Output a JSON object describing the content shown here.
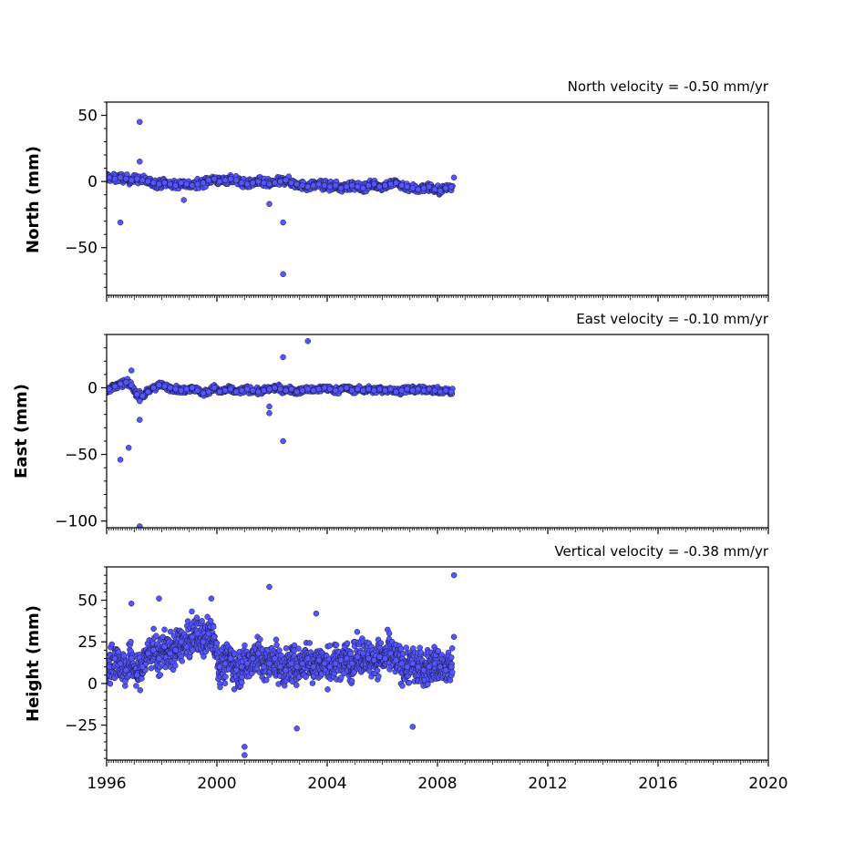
{
  "figure": {
    "x_ticks": [
      1996,
      2000,
      2004,
      2008,
      2012,
      2016,
      2020
    ],
    "x_range": [
      1996,
      2020
    ]
  },
  "panels": [
    {
      "key": "north",
      "velocity_label": "North velocity = -0.50 mm/yr",
      "ylabel": "North (mm)",
      "ylim": [
        -86,
        60
      ],
      "yticks": [
        50,
        0,
        -50
      ],
      "ytick_labels": [
        "50",
        "0",
        "−50"
      ]
    },
    {
      "key": "east",
      "velocity_label": "East velocity = -0.10 mm/yr",
      "ylabel": "East (mm)",
      "ylim": [
        -105,
        40
      ],
      "yticks": [
        0,
        -50,
        -100
      ],
      "ytick_labels": [
        "0",
        "−50",
        "−100"
      ]
    },
    {
      "key": "height",
      "velocity_label": "Vertical velocity = -0.38 mm/yr",
      "ylabel": "Height (mm)",
      "ylim": [
        -46,
        70
      ],
      "yticks": [
        50,
        25,
        0,
        -25
      ],
      "ytick_labels": [
        "50",
        "25",
        "0",
        "−25"
      ]
    }
  ],
  "chart_data": [
    {
      "type": "scatter",
      "title": "North velocity = -0.50 mm/yr",
      "xlabel": "",
      "ylabel": "North (mm)",
      "xlim": [
        1996,
        2020
      ],
      "ylim": [
        -86,
        60
      ],
      "marker_color": "#5555ff",
      "marker_edge": "#1a1a40",
      "series": [
        {
          "description": "daily position time series, approx. 1996.0 to 2008.6; values read from chart",
          "x": [
            1996.0,
            1996.1,
            1996.3,
            1996.5,
            1996.7,
            1996.9,
            1997.1,
            1997.3,
            1997.5,
            1997.7,
            1997.9,
            1998.1,
            1998.3,
            1998.5,
            1998.7,
            1998.9,
            1999.1,
            1999.3,
            1999.5,
            1999.7,
            1999.9,
            2000.1,
            2000.3,
            2000.5,
            2000.7,
            2000.9,
            2001.1,
            2001.3,
            2001.5,
            2001.7,
            2001.9,
            2002.1,
            2002.3,
            2002.5,
            2002.7,
            2002.9,
            2003.1,
            2003.3,
            2003.5,
            2003.7,
            2003.9,
            2004.1,
            2004.3,
            2004.5,
            2004.7,
            2004.9,
            2005.1,
            2005.3,
            2005.5,
            2005.7,
            2005.9,
            2006.1,
            2006.3,
            2006.5,
            2006.7,
            2006.9,
            2007.1,
            2007.3,
            2007.5,
            2007.7,
            2007.9,
            2008.1,
            2008.3,
            2008.5,
            1996.5,
            1997.2,
            1997.2,
            2001.9,
            2002.4,
            2002.4,
            1998.8,
            2008.6
          ],
          "y": [
            4,
            3,
            2,
            3,
            2,
            1,
            2,
            1,
            0,
            -1,
            -2,
            -1,
            -2,
            -3,
            -1,
            -2,
            -3,
            -2,
            -1,
            1,
            2,
            0,
            1,
            2,
            1,
            -1,
            -2,
            -1,
            0,
            -1,
            -2,
            -1,
            0,
            1,
            -1,
            -2,
            -3,
            -4,
            -3,
            -2,
            -3,
            -4,
            -3,
            -5,
            -4,
            -3,
            -4,
            -5,
            -3,
            -2,
            -4,
            -3,
            -2,
            -1,
            -3,
            -4,
            -5,
            -6,
            -5,
            -4,
            -6,
            -7,
            -5,
            -4,
            -31,
            45,
            15,
            -17,
            -31,
            -70,
            -14,
            3
          ]
        }
      ]
    },
    {
      "type": "scatter",
      "title": "East velocity = -0.10 mm/yr",
      "xlabel": "",
      "ylabel": "East (mm)",
      "xlim": [
        1996,
        2020
      ],
      "ylim": [
        -105,
        40
      ],
      "marker_color": "#5555ff",
      "marker_edge": "#1a1a40",
      "series": [
        {
          "description": "daily position time series, approx. 1996.0 to 2008.6; values read from chart",
          "x": [
            1996.0,
            1996.1,
            1996.3,
            1996.5,
            1996.7,
            1996.9,
            1997.1,
            1997.3,
            1997.5,
            1997.7,
            1997.9,
            1998.1,
            1998.3,
            1998.5,
            1998.7,
            1998.9,
            1999.1,
            1999.3,
            1999.5,
            1999.7,
            1999.9,
            2000.1,
            2000.3,
            2000.5,
            2000.7,
            2000.9,
            2001.1,
            2001.3,
            2001.5,
            2001.7,
            2001.9,
            2002.1,
            2002.3,
            2002.5,
            2002.7,
            2002.9,
            2003.1,
            2003.3,
            2003.5,
            2003.7,
            2003.9,
            2004.1,
            2004.3,
            2004.5,
            2004.7,
            2004.9,
            2005.1,
            2005.3,
            2005.5,
            2005.7,
            2005.9,
            2006.1,
            2006.3,
            2006.5,
            2006.7,
            2006.9,
            2007.1,
            2007.3,
            2007.5,
            2007.7,
            2007.9,
            2008.1,
            2008.3,
            2008.5,
            1996.5,
            1996.8,
            1997.2,
            1997.2,
            2001.9,
            2001.9,
            2002.4,
            2002.4,
            2003.3,
            1997.2,
            1996.9
          ],
          "y": [
            -2,
            -1,
            1,
            3,
            4,
            2,
            -5,
            -6,
            -3,
            0,
            2,
            1,
            0,
            -1,
            -2,
            -1,
            0,
            -2,
            -4,
            -3,
            0,
            -3,
            -2,
            -1,
            -3,
            -2,
            -1,
            -2,
            -3,
            -2,
            -1,
            0,
            -1,
            -2,
            -1,
            -3,
            -2,
            -1,
            -2,
            -1,
            0,
            -1,
            -2,
            -1,
            0,
            -2,
            -1,
            -2,
            -1,
            -2,
            -1,
            -2,
            -1,
            -3,
            -2,
            -1,
            -2,
            -1,
            -2,
            -1,
            -2,
            -3,
            -2,
            -3,
            -54,
            -45,
            -24,
            -104,
            -14,
            -19,
            23,
            -40,
            35,
            -10,
            13
          ]
        }
      ]
    },
    {
      "type": "scatter",
      "title": "Vertical velocity = -0.38 mm/yr",
      "xlabel": "",
      "ylabel": "Height (mm)",
      "xlim": [
        1996,
        2020
      ],
      "ylim": [
        -46,
        70
      ],
      "marker_color": "#5555ff",
      "marker_edge": "#1a1a40",
      "series": [
        {
          "description": "daily position time series, approx. 1996.0 to 2008.6; values read from chart",
          "x": [
            1996.0,
            1996.1,
            1996.3,
            1996.5,
            1996.7,
            1996.9,
            1997.1,
            1997.3,
            1997.5,
            1997.7,
            1997.9,
            1998.1,
            1998.3,
            1998.5,
            1998.7,
            1998.9,
            1999.1,
            1999.3,
            1999.5,
            1999.7,
            1999.9,
            2000.1,
            2000.3,
            2000.5,
            2000.7,
            2000.9,
            2001.1,
            2001.3,
            2001.5,
            2001.7,
            2001.9,
            2002.1,
            2002.3,
            2002.5,
            2002.7,
            2002.9,
            2003.1,
            2003.3,
            2003.5,
            2003.7,
            2003.9,
            2004.1,
            2004.3,
            2004.5,
            2004.7,
            2004.9,
            2005.1,
            2005.3,
            2005.5,
            2005.7,
            2005.9,
            2006.1,
            2006.3,
            2006.5,
            2006.7,
            2006.9,
            2007.1,
            2007.3,
            2007.5,
            2007.7,
            2007.9,
            2008.1,
            2008.3,
            2008.5,
            1996.9,
            1997.9,
            1999.8,
            2001.0,
            2001.0,
            2001.9,
            2002.9,
            2003.6,
            2007.1,
            2008.6,
            2008.6
          ],
          "y": [
            5,
            10,
            15,
            12,
            8,
            15,
            5,
            10,
            18,
            20,
            15,
            22,
            18,
            20,
            25,
            22,
            28,
            30,
            25,
            30,
            28,
            10,
            12,
            15,
            8,
            10,
            12,
            15,
            18,
            10,
            12,
            15,
            10,
            8,
            12,
            10,
            12,
            15,
            10,
            14,
            12,
            10,
            12,
            14,
            15,
            12,
            16,
            18,
            15,
            14,
            16,
            15,
            18,
            14,
            12,
            10,
            12,
            10,
            8,
            10,
            12,
            10,
            8,
            10,
            48,
            51,
            51,
            -38,
            -43,
            58,
            -27,
            42,
            -26,
            65,
            28
          ]
        }
      ]
    }
  ]
}
